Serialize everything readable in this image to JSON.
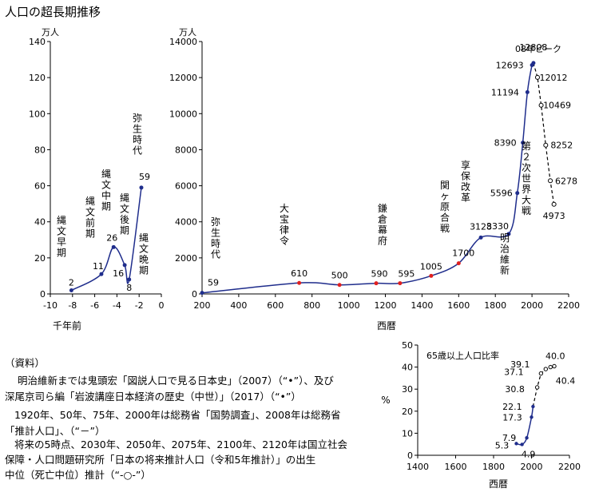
{
  "title": "人口の超長期推移",
  "notes": [
    "（資料）",
    "明治維新までは鬼頭宏「図説人口で見る日本史」（2007）（“•”）、及び",
    "深尾京司ら編「岩波講座日本経済の歴史（中世）」（2017）（“•”）",
    "1920年、50年、75年、2000年は総務省「国勢調査」、2008年は総務省",
    "「推計人口」、（“－”）",
    "将来の5時点、2030年、2050年、2075年、2100年、2120年は国立社会",
    "保障・人口問題研究所「日本の将来推計人口（令和5年推計）」の出生",
    "中位（死亡中位）推計（“-○-”）"
  ],
  "chart_data": [
    {
      "type": "line",
      "ylabel": "万人",
      "xlabel": "千年前",
      "xlim": [
        -10,
        0
      ],
      "ylim": [
        0,
        140
      ],
      "xticks": [
        "-10",
        "-8",
        "-6",
        "-4",
        "-2",
        "0"
      ],
      "yticks": [
        "0",
        "20",
        "40",
        "60",
        "80",
        "100",
        "120",
        "140"
      ],
      "points": [
        {
          "x": -8.1,
          "y": 2,
          "label": "2"
        },
        {
          "x": -5.4,
          "y": 11,
          "label": "11"
        },
        {
          "x": -4.3,
          "y": 26,
          "label": "26"
        },
        {
          "x": -3.3,
          "y": 16,
          "label": "16"
        },
        {
          "x": -2.9,
          "y": 8,
          "label": "8"
        },
        {
          "x": -1.8,
          "y": 59,
          "label": "59"
        }
      ],
      "periods": [
        "縄文早期",
        "縄文前期",
        "縄文中期",
        "縄文後期",
        "縄文晩期",
        "弥生時代"
      ],
      "color": "#1f2d8c"
    },
    {
      "type": "line",
      "ylabel": "万人",
      "xlabel": "西暦",
      "xlim": [
        200,
        2200
      ],
      "ylim": [
        0,
        14000
      ],
      "xticks": [
        "200",
        "400",
        "600",
        "800",
        "1000",
        "1200",
        "1400",
        "1600",
        "1800",
        "2000",
        "2200"
      ],
      "yticks": [
        "0",
        "2000",
        "4000",
        "6000",
        "8000",
        "10000",
        "12000",
        "14000"
      ],
      "historical": [
        {
          "x": 200,
          "y": 59,
          "label": "59",
          "color": "#1f2d8c"
        },
        {
          "x": 730,
          "y": 610,
          "label": "610",
          "color": "#e02020"
        },
        {
          "x": 950,
          "y": 500,
          "label": "500",
          "color": "#e02020"
        },
        {
          "x": 1150,
          "y": 590,
          "label": "590",
          "color": "#e02020"
        },
        {
          "x": 1280,
          "y": 595,
          "label": "595",
          "color": "#e02020"
        },
        {
          "x": 1450,
          "y": 1005,
          "label": "1005",
          "color": "#e02020"
        },
        {
          "x": 1600,
          "y": 1700,
          "label": "1700",
          "color": "#e02020"
        },
        {
          "x": 1721,
          "y": 3128,
          "label": "3128",
          "color": "#1f2d8c"
        },
        {
          "x": 1873,
          "y": 3330,
          "label": "3330",
          "color": "#1f2d8c"
        },
        {
          "x": 1920,
          "y": 5596,
          "label": "5596",
          "color": "#1f2d8c"
        },
        {
          "x": 1950,
          "y": 8390,
          "label": "8390",
          "color": "#1f2d8c"
        },
        {
          "x": 1975,
          "y": 11194,
          "label": "11194",
          "color": "#1f2d8c"
        },
        {
          "x": 2000,
          "y": 12693,
          "label": "12693",
          "color": "#1f2d8c"
        },
        {
          "x": 2008,
          "y": 12808,
          "label": "12808",
          "color": "#1f2d8c"
        }
      ],
      "projection": [
        {
          "x": 2008,
          "y": 12808,
          "label": ""
        },
        {
          "x": 2030,
          "y": 12012,
          "label": "12012"
        },
        {
          "x": 2050,
          "y": 10469,
          "label": "10469"
        },
        {
          "x": 2075,
          "y": 8252,
          "label": "8252"
        },
        {
          "x": 2100,
          "y": 6278,
          "label": "6278"
        },
        {
          "x": 2120,
          "y": 4973,
          "label": "4973"
        }
      ],
      "annotations": [
        "弥生時代",
        "大宝律令",
        "鎌倉幕府",
        "関ヶ原合戦",
        "享保改革",
        "明治維新",
        "第２次世界大戦",
        "08年ピーク"
      ],
      "color": "#1f2d8c"
    },
    {
      "type": "line",
      "title": "65歳以上人口比率",
      "ylabel": "%",
      "xlabel": "西暦",
      "xlim": [
        1400,
        2200
      ],
      "ylim": [
        0,
        50
      ],
      "xticks": [
        "1400",
        "1600",
        "1800",
        "2000",
        "2200"
      ],
      "yticks": [
        "0",
        "10",
        "20",
        "30",
        "40",
        "50"
      ],
      "historical": [
        {
          "x": 1920,
          "y": 5.3,
          "label": "5.3"
        },
        {
          "x": 1950,
          "y": 4.9,
          "label": "4.9"
        },
        {
          "x": 1975,
          "y": 7.9,
          "label": "7.9"
        },
        {
          "x": 2000,
          "y": 17.3,
          "label": "17.3"
        },
        {
          "x": 2008,
          "y": 22.1,
          "label": "22.1"
        }
      ],
      "projection": [
        {
          "x": 2008,
          "y": 22.1,
          "label": ""
        },
        {
          "x": 2030,
          "y": 30.8,
          "label": "30.8"
        },
        {
          "x": 2050,
          "y": 37.1,
          "label": "37.1"
        },
        {
          "x": 2075,
          "y": 39.1,
          "label": "39.1"
        },
        {
          "x": 2100,
          "y": 40.0,
          "label": "40.0"
        },
        {
          "x": 2120,
          "y": 40.4,
          "label": "40.4"
        }
      ],
      "color": "#1f2d8c"
    }
  ]
}
